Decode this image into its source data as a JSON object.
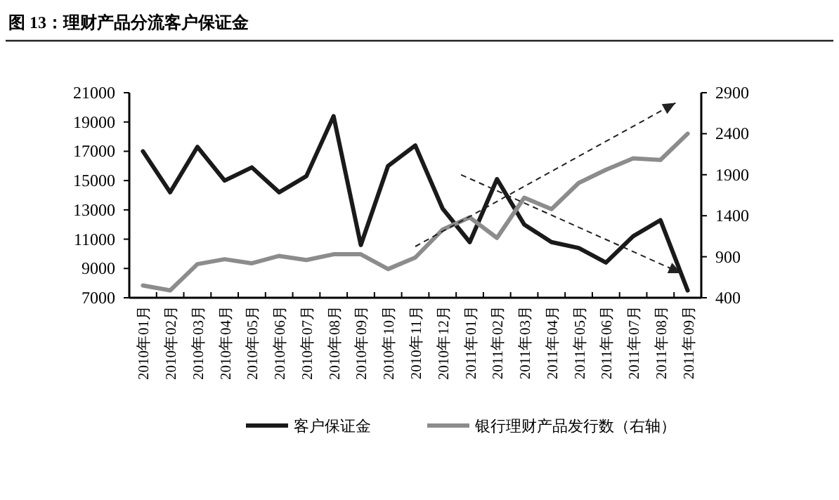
{
  "chart_data": {
    "type": "line",
    "title": "图 13：理财产品分流客户保证金",
    "categories": [
      "2010年01月",
      "2010年02月",
      "2010年03月",
      "2010年04月",
      "2010年05月",
      "2010年06月",
      "2010年07月",
      "2010年08月",
      "2010年09月",
      "2010年10月",
      "2010年11月",
      "2010年12月",
      "2011年01月",
      "2011年02月",
      "2011年03月",
      "2011年04月",
      "2011年05月",
      "2011年06月",
      "2011年07月",
      "2011年08月",
      "2011年09月"
    ],
    "series": [
      {
        "name": "客户保证金",
        "color": "#1a1a1a",
        "values": [
          17000,
          14200,
          17300,
          15000,
          15900,
          14200,
          15300,
          19400,
          10600,
          16000,
          17400,
          13100,
          10800,
          15100,
          12000,
          10800,
          10400,
          9400,
          11200,
          12300,
          7500
        ]
      },
      {
        "name": "银行理财产品发行数（右轴）",
        "color": "#8c8c8c",
        "axis": "y2",
        "values": [
          550,
          490,
          810,
          870,
          820,
          910,
          860,
          930,
          930,
          750,
          890,
          1230,
          1380,
          1130,
          1620,
          1480,
          1800,
          1960,
          2100,
          2080,
          2400
        ]
      }
    ],
    "ylim": [
      7000,
      21000
    ],
    "yticks": [
      7000,
      9000,
      11000,
      13000,
      15000,
      17000,
      19000,
      21000
    ],
    "y2lim": [
      400,
      2900
    ],
    "y2ticks": [
      400,
      900,
      1400,
      1900,
      2400,
      2900
    ],
    "grid": false,
    "legend": "bottom",
    "marker": "none",
    "line_style": "solid"
  }
}
